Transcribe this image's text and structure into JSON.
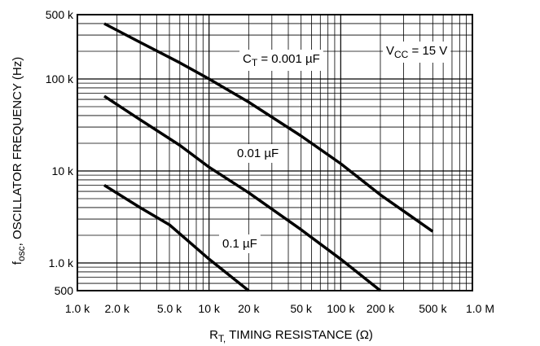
{
  "chart_data": {
    "type": "line",
    "scale": {
      "x": "log",
      "y": "log"
    },
    "grid": true,
    "xlim": [
      1000,
      1000000
    ],
    "ylim": [
      500,
      500000
    ],
    "xlabel": {
      "main": "R",
      "sub": "T,",
      "rest": " TIMING RESISTANCE (Ω)"
    },
    "ylabel": {
      "main": "f",
      "sub": "osc",
      "rest": ", OSCILLATOR FREQUENCY (Hz)"
    },
    "x_ticks": [
      {
        "value": 1000,
        "label": "1.0 k"
      },
      {
        "value": 2000,
        "label": "2.0 k"
      },
      {
        "value": 5000,
        "label": "5.0 k"
      },
      {
        "value": 10000,
        "label": "10 k"
      },
      {
        "value": 20000,
        "label": "20 k"
      },
      {
        "value": 50000,
        "label": "50 k"
      },
      {
        "value": 100000,
        "label": "100 k"
      },
      {
        "value": 200000,
        "label": "200 k"
      },
      {
        "value": 500000,
        "label": "500 k"
      },
      {
        "value": 1000000,
        "label": "1.0 M"
      }
    ],
    "y_ticks": [
      {
        "value": 500,
        "label": "500"
      },
      {
        "value": 1000,
        "label": "1.0 k"
      },
      {
        "value": 10000,
        "label": "10 k"
      },
      {
        "value": 100000,
        "label": "100 k"
      },
      {
        "value": 500000,
        "label": "500 k"
      }
    ],
    "series": [
      {
        "name": "0.001 µF",
        "x": [
          1600,
          3000,
          6000,
          10000,
          20000,
          50000,
          100000,
          200000,
          500000
        ],
        "y": [
          400000,
          250000,
          150000,
          100000,
          56000,
          24000,
          12000,
          5500,
          2200
        ]
      },
      {
        "name": "0.01 µF",
        "x": [
          1600,
          3000,
          6000,
          10000,
          20000,
          50000,
          100000,
          200000
        ],
        "y": [
          65000,
          36000,
          19000,
          11000,
          5800,
          2300,
          1100,
          500
        ]
      },
      {
        "name": "0.1 µF",
        "x": [
          1600,
          3000,
          5000,
          10000,
          20000
        ],
        "y": [
          7000,
          4000,
          2600,
          1100,
          500
        ]
      }
    ],
    "annotations": {
      "ct": {
        "main": "C",
        "sub": "T",
        "rest": " = 0.001 µF"
      },
      "c2": "0.01 µF",
      "c3": "0.1 µF",
      "vcc": {
        "main": "V",
        "sub": "CC",
        "rest": " = 15 V"
      }
    }
  }
}
